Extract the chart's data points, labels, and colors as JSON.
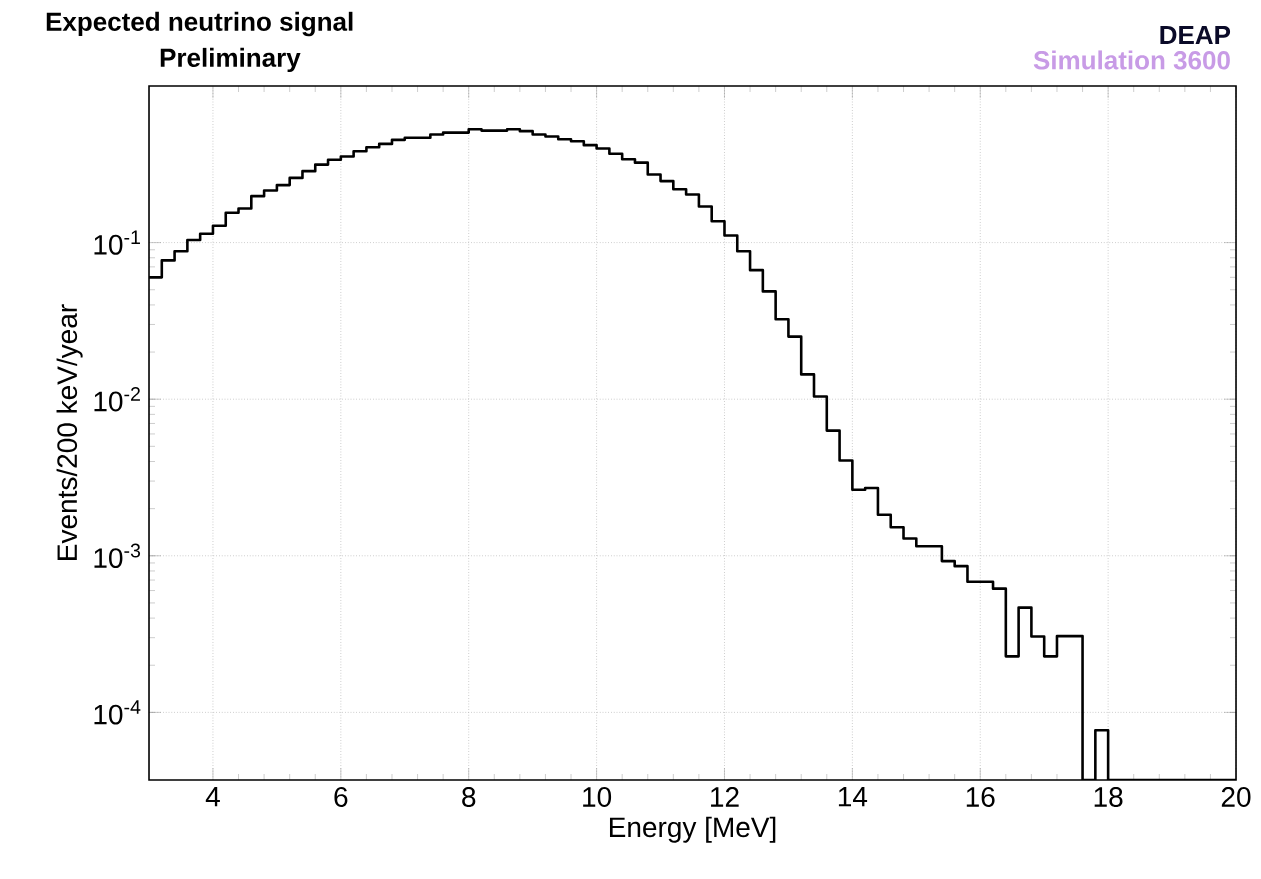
{
  "chart_data": {
    "type": "histogram",
    "title": "Expected neutrino signal",
    "subtitle": "Preliminary",
    "xlabel": "Energy [MeV]",
    "ylabel": "Events/200 keV/year",
    "annotations": [
      "DEAP",
      "Simulation  3600"
    ],
    "bins": [
      3.0,
      3.2,
      3.4,
      3.6,
      3.8,
      4.0,
      4.2,
      4.4,
      4.6,
      4.8,
      5.0,
      5.2,
      5.4,
      5.6,
      5.8,
      6.0,
      6.2,
      6.4,
      6.6,
      6.8,
      7.0,
      7.2,
      7.4,
      7.6,
      7.8,
      8.0,
      8.2,
      8.4,
      8.6,
      8.8,
      9.0,
      9.2,
      9.4,
      9.6,
      9.8,
      10.0,
      10.2,
      10.4,
      10.6,
      10.8,
      11.0,
      11.2,
      11.4,
      11.6,
      11.8,
      12.0,
      12.2,
      12.4,
      12.6,
      12.8,
      13.0,
      13.2,
      13.4,
      13.6,
      13.8,
      14.0,
      14.2,
      14.4,
      14.6,
      14.8,
      15.0,
      15.2,
      15.4,
      15.6,
      15.8,
      16.0,
      16.2,
      16.4,
      16.6,
      16.8,
      17.0,
      17.2,
      17.4,
      17.6,
      17.8,
      18.0,
      18.2,
      18.4,
      18.6,
      18.8,
      19.0,
      19.2,
      19.4,
      19.6,
      19.8,
      20.0
    ],
    "values": [
      0.06,
      0.077,
      0.088,
      0.104,
      0.114,
      0.128,
      0.155,
      0.165,
      0.198,
      0.215,
      0.233,
      0.259,
      0.286,
      0.315,
      0.338,
      0.355,
      0.383,
      0.406,
      0.427,
      0.453,
      0.467,
      0.467,
      0.49,
      0.504,
      0.504,
      0.529,
      0.519,
      0.519,
      0.529,
      0.515,
      0.49,
      0.476,
      0.457,
      0.444,
      0.419,
      0.399,
      0.369,
      0.341,
      0.324,
      0.272,
      0.247,
      0.219,
      0.203,
      0.17,
      0.137,
      0.111,
      0.088,
      0.0667,
      0.0488,
      0.0324,
      0.0251,
      0.0144,
      0.0104,
      0.0063,
      0.00406,
      0.00264,
      0.00271,
      0.00183,
      0.00152,
      0.00129,
      0.00115,
      0.00115,
      0.000925,
      0.000859,
      0.000683,
      0.000683,
      0.000617,
      0.000228,
      0.000467,
      0.000305,
      0.000228,
      0.000307,
      0.000307,
      null,
      7.7e-05,
      null,
      null,
      null,
      null,
      null,
      null,
      null,
      null,
      null,
      null
    ],
    "color": "#000000",
    "xlim": [
      3,
      20
    ],
    "ylim": [
      3.7e-05,
      1
    ],
    "log": true,
    "grid": true,
    "xticks": [
      4,
      6,
      8,
      10,
      12,
      14,
      16,
      18,
      20
    ],
    "yticks": [
      {
        "value": 0.0001,
        "label": "10$^{-4}$"
      },
      {
        "value": 0.001,
        "label": "10$^{-3}$"
      },
      {
        "value": 0.01,
        "label": "10$^{-2}$"
      },
      {
        "value": 0.1,
        "label": "10$^{-1}$"
      }
    ]
  }
}
